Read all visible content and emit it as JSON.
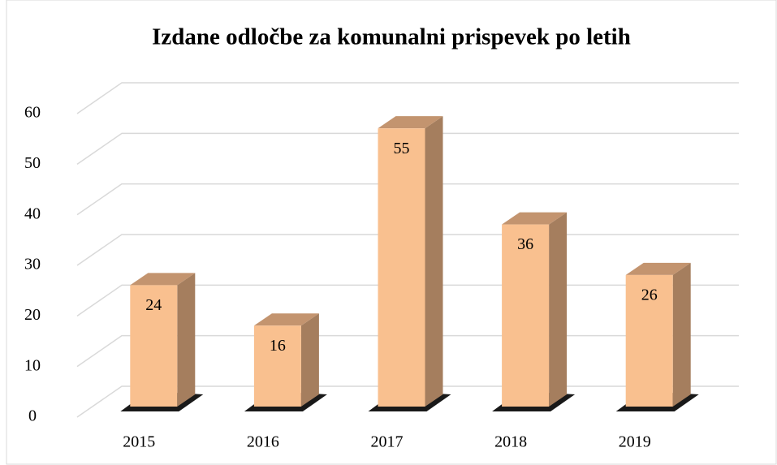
{
  "chart_data": {
    "type": "bar",
    "title": "Izdane odločbe za komunalni prispevek po letih",
    "categories": [
      "2015",
      "2016",
      "2017",
      "2018",
      "2019"
    ],
    "values": [
      24,
      16,
      55,
      36,
      26
    ],
    "color": "#f9c08f",
    "ylim": [
      0,
      60
    ],
    "yticks": [
      0,
      10,
      20,
      30,
      40,
      50,
      60
    ],
    "grid": true
  }
}
